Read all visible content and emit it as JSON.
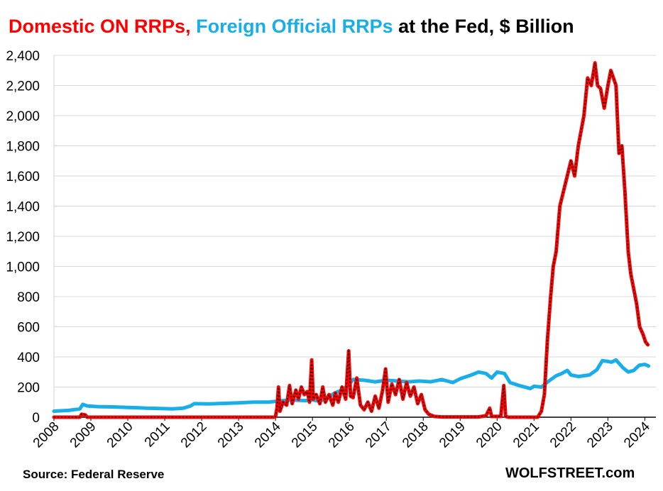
{
  "header": {
    "title_domestic": "Domestic ON RRPs,",
    "title_foreign": "Foreign Official RRPs",
    "title_rest": "at the Fed, $ Billion"
  },
  "footer": {
    "source": "Source: Federal Reserve",
    "brand": "WOLFSTREET.com"
  },
  "colors": {
    "domestic": "#ff0000",
    "domestic_overlay": "#1a1a1a",
    "foreign": "#1aaee8",
    "grid": "#d9d9d9"
  },
  "chart_data": {
    "type": "line",
    "title": "Domestic ON RRPs, Foreign Official RRPs at the Fed, $ Billion",
    "xlabel": "",
    "ylabel": "$ Billion",
    "xlim": [
      2008.0,
      2024.3
    ],
    "ylim": [
      0,
      2400
    ],
    "y_ticks": [
      0,
      200,
      400,
      600,
      800,
      1000,
      1200,
      1400,
      1600,
      1800,
      2000,
      2200,
      2400
    ],
    "y_tick_labels": [
      "0",
      "200",
      "400",
      "600",
      "800",
      "1,000",
      "1,200",
      "1,400",
      "1,600",
      "1,800",
      "2,000",
      "2,200",
      "2,400"
    ],
    "x_ticks": [
      "2008",
      "2009",
      "2010",
      "2011",
      "2012",
      "2013",
      "2014",
      "2015",
      "2016",
      "2017",
      "2018",
      "2019",
      "2020",
      "2021",
      "2022",
      "2023",
      "2024"
    ],
    "grid": true,
    "series": [
      {
        "name": "Domestic ON RRPs",
        "color": "#ff0000",
        "points": [
          [
            2008.0,
            0
          ],
          [
            2008.7,
            0
          ],
          [
            2008.75,
            20
          ],
          [
            2008.85,
            15
          ],
          [
            2008.9,
            0
          ],
          [
            2013.95,
            0
          ],
          [
            2014.0,
            5
          ],
          [
            2014.04,
            60
          ],
          [
            2014.08,
            200
          ],
          [
            2014.12,
            40
          ],
          [
            2014.2,
            100
          ],
          [
            2014.3,
            80
          ],
          [
            2014.38,
            210
          ],
          [
            2014.45,
            90
          ],
          [
            2014.55,
            180
          ],
          [
            2014.62,
            120
          ],
          [
            2014.7,
            200
          ],
          [
            2014.78,
            150
          ],
          [
            2014.86,
            170
          ],
          [
            2014.92,
            100
          ],
          [
            2014.98,
            380
          ],
          [
            2015.02,
            120
          ],
          [
            2015.1,
            150
          ],
          [
            2015.2,
            90
          ],
          [
            2015.28,
            200
          ],
          [
            2015.35,
            100
          ],
          [
            2015.45,
            150
          ],
          [
            2015.55,
            80
          ],
          [
            2015.62,
            160
          ],
          [
            2015.7,
            100
          ],
          [
            2015.8,
            200
          ],
          [
            2015.9,
            120
          ],
          [
            2015.98,
            440
          ],
          [
            2016.03,
            140
          ],
          [
            2016.1,
            130
          ],
          [
            2016.2,
            260
          ],
          [
            2016.3,
            80
          ],
          [
            2016.4,
            50
          ],
          [
            2016.5,
            100
          ],
          [
            2016.6,
            40
          ],
          [
            2016.7,
            140
          ],
          [
            2016.8,
            60
          ],
          [
            2016.9,
            180
          ],
          [
            2016.98,
            320
          ],
          [
            2017.05,
            100
          ],
          [
            2017.15,
            220
          ],
          [
            2017.25,
            150
          ],
          [
            2017.35,
            250
          ],
          [
            2017.45,
            120
          ],
          [
            2017.55,
            230
          ],
          [
            2017.65,
            140
          ],
          [
            2017.75,
            200
          ],
          [
            2017.85,
            90
          ],
          [
            2017.95,
            150
          ],
          [
            2018.05,
            50
          ],
          [
            2018.15,
            20
          ],
          [
            2018.3,
            5
          ],
          [
            2018.5,
            2
          ],
          [
            2019.5,
            2
          ],
          [
            2019.7,
            10
          ],
          [
            2019.8,
            60
          ],
          [
            2019.85,
            5
          ],
          [
            2020.1,
            5
          ],
          [
            2020.18,
            210
          ],
          [
            2020.23,
            5
          ],
          [
            2020.3,
            0
          ],
          [
            2021.1,
            0
          ],
          [
            2021.2,
            40
          ],
          [
            2021.28,
            150
          ],
          [
            2021.36,
            500
          ],
          [
            2021.45,
            800
          ],
          [
            2021.52,
            1000
          ],
          [
            2021.6,
            1100
          ],
          [
            2021.7,
            1400
          ],
          [
            2021.8,
            1500
          ],
          [
            2021.9,
            1600
          ],
          [
            2022.0,
            1700
          ],
          [
            2022.1,
            1600
          ],
          [
            2022.2,
            1800
          ],
          [
            2022.35,
            2000
          ],
          [
            2022.45,
            2250
          ],
          [
            2022.55,
            2200
          ],
          [
            2022.65,
            2350
          ],
          [
            2022.72,
            2200
          ],
          [
            2022.8,
            2180
          ],
          [
            2022.9,
            2050
          ],
          [
            2023.0,
            2200
          ],
          [
            2023.08,
            2300
          ],
          [
            2023.15,
            2250
          ],
          [
            2023.22,
            2200
          ],
          [
            2023.3,
            1750
          ],
          [
            2023.38,
            1800
          ],
          [
            2023.46,
            1500
          ],
          [
            2023.55,
            1100
          ],
          [
            2023.62,
            950
          ],
          [
            2023.7,
            850
          ],
          [
            2023.78,
            750
          ],
          [
            2023.86,
            600
          ],
          [
            2023.95,
            550
          ],
          [
            2024.02,
            500
          ],
          [
            2024.08,
            480
          ]
        ]
      },
      {
        "name": "Foreign Official RRPs",
        "color": "#1aaee8",
        "points": [
          [
            2008.0,
            40
          ],
          [
            2008.4,
            45
          ],
          [
            2008.7,
            55
          ],
          [
            2008.78,
            85
          ],
          [
            2008.9,
            75
          ],
          [
            2009.2,
            70
          ],
          [
            2009.6,
            68
          ],
          [
            2010.0,
            65
          ],
          [
            2010.3,
            62
          ],
          [
            2010.5,
            60
          ],
          [
            2010.9,
            58
          ],
          [
            2011.2,
            55
          ],
          [
            2011.5,
            60
          ],
          [
            2011.7,
            75
          ],
          [
            2011.8,
            90
          ],
          [
            2012.2,
            88
          ],
          [
            2012.6,
            92
          ],
          [
            2013.0,
            95
          ],
          [
            2013.4,
            100
          ],
          [
            2013.8,
            100
          ],
          [
            2014.0,
            105
          ],
          [
            2014.4,
            115
          ],
          [
            2014.8,
            110
          ],
          [
            2015.0,
            115
          ],
          [
            2015.2,
            105
          ],
          [
            2015.4,
            130
          ],
          [
            2015.6,
            160
          ],
          [
            2015.8,
            180
          ],
          [
            2016.0,
            220
          ],
          [
            2016.1,
            250
          ],
          [
            2016.4,
            245
          ],
          [
            2016.7,
            235
          ],
          [
            2017.0,
            245
          ],
          [
            2017.3,
            240
          ],
          [
            2017.6,
            235
          ],
          [
            2017.9,
            240
          ],
          [
            2018.2,
            235
          ],
          [
            2018.5,
            250
          ],
          [
            2018.8,
            230
          ],
          [
            2019.0,
            255
          ],
          [
            2019.3,
            280
          ],
          [
            2019.5,
            300
          ],
          [
            2019.7,
            290
          ],
          [
            2019.85,
            260
          ],
          [
            2020.0,
            300
          ],
          [
            2020.2,
            290
          ],
          [
            2020.35,
            230
          ],
          [
            2020.6,
            210
          ],
          [
            2020.9,
            190
          ],
          [
            2021.0,
            205
          ],
          [
            2021.2,
            200
          ],
          [
            2021.4,
            240
          ],
          [
            2021.6,
            275
          ],
          [
            2021.75,
            290
          ],
          [
            2021.9,
            310
          ],
          [
            2022.0,
            280
          ],
          [
            2022.2,
            270
          ],
          [
            2022.5,
            280
          ],
          [
            2022.7,
            315
          ],
          [
            2022.85,
            375
          ],
          [
            2023.0,
            370
          ],
          [
            2023.1,
            365
          ],
          [
            2023.22,
            380
          ],
          [
            2023.4,
            330
          ],
          [
            2023.55,
            300
          ],
          [
            2023.7,
            310
          ],
          [
            2023.85,
            345
          ],
          [
            2024.0,
            350
          ],
          [
            2024.1,
            340
          ]
        ]
      },
      {
        "name": "Domestic ON RRPs (overlay)",
        "color": "#1a1a1a",
        "points": []
      }
    ]
  }
}
